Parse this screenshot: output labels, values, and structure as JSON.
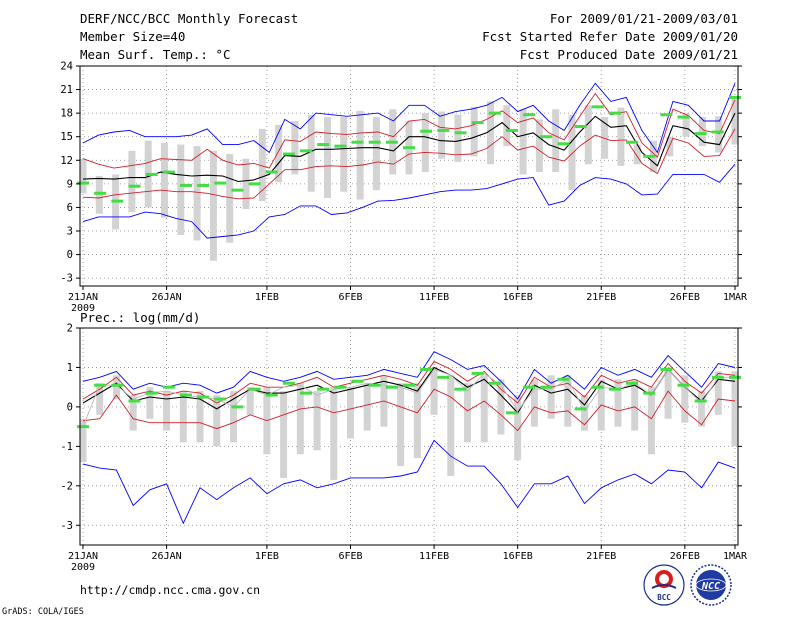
{
  "header": {
    "title": "DERF/NCC/BCC Monthly Forecast",
    "member_size": "Member Size=40",
    "variable": "Mean Surf. Temp.: °C",
    "period": "For 2009/01/21-2009/03/01",
    "started": "Fcst Started Refer Date 2009/01/20",
    "produced": "Fcst Produced Date 2009/01/21"
  },
  "footer": {
    "url": "http://cmdp.ncc.cma.gov.cn",
    "credit": "GrADS: COLA/IGES",
    "logo_left_text": "BCC",
    "logo_right_text": "NCC"
  },
  "colors": {
    "envelope": "#0000ff",
    "spread": "#d0202a",
    "mean": "#000000",
    "obs_bar": "#d3d3d3",
    "member_tick": "#44dd44",
    "grid": "#888888"
  },
  "chart_data": [
    {
      "id": "temperature",
      "type": "line",
      "title": "Mean Surf. Temp.: °C",
      "xlabel": "",
      "ylabel": "",
      "ylim": [
        -4,
        24
      ],
      "yticks": [
        24,
        21,
        18,
        15,
        12,
        9,
        6,
        3,
        0,
        -3
      ],
      "xlim": [
        1,
        40
      ],
      "xticks": [
        {
          "day": 1,
          "label": "21JAN",
          "sub": "2009"
        },
        {
          "day": 6,
          "label": "26JAN",
          "sub": ""
        },
        {
          "day": 12,
          "label": "1FEB",
          "sub": ""
        },
        {
          "day": 17,
          "label": "6FEB",
          "sub": ""
        },
        {
          "day": 22,
          "label": "11FEB",
          "sub": ""
        },
        {
          "day": 27,
          "label": "16FEB",
          "sub": ""
        },
        {
          "day": 32,
          "label": "21FEB",
          "sub": ""
        },
        {
          "day": 37,
          "label": "26FEB",
          "sub": ""
        },
        {
          "day": 40,
          "label": "1MAR",
          "sub": ""
        }
      ],
      "grid": true,
      "series": [
        {
          "name": "max",
          "color": "#0000ff",
          "values": [
            14.2,
            15.2,
            15.6,
            15.8,
            15.0,
            15.0,
            15.0,
            15.2,
            16.0,
            14.0,
            14.0,
            14.5,
            13.0,
            17.2,
            16.0,
            18.0,
            17.8,
            17.6,
            17.8,
            18.0,
            17.0,
            19.0,
            19.0,
            17.6,
            18.2,
            18.5,
            19.0,
            20.0,
            18.2,
            19.0,
            17.0,
            15.8,
            19.0,
            21.8,
            19.5,
            20.0,
            15.8,
            13.0,
            19.5,
            19.0,
            17.0,
            17.0,
            21.8
          ]
        },
        {
          "name": "upper",
          "color": "#d0202a",
          "values": [
            12.2,
            11.5,
            11.0,
            11.3,
            11.6,
            12.2,
            12.1,
            12.0,
            13.4,
            12.0,
            11.4,
            11.6,
            11.0,
            14.6,
            14.4,
            15.6,
            15.4,
            15.3,
            15.5,
            15.6,
            15.0,
            17.0,
            17.2,
            16.2,
            16.0,
            16.4,
            17.2,
            18.3,
            16.8,
            17.4,
            15.5,
            14.6,
            17.6,
            20.5,
            17.8,
            18.2,
            14.2,
            12.4,
            18.5,
            17.7,
            15.8,
            15.4,
            19.7
          ]
        },
        {
          "name": "mean",
          "color": "#000000",
          "values": [
            9.6,
            9.7,
            9.6,
            9.8,
            9.8,
            10.5,
            10.2,
            10.0,
            10.1,
            10.0,
            9.3,
            9.5,
            10.2,
            12.6,
            12.5,
            13.4,
            13.4,
            13.5,
            13.6,
            13.6,
            13.2,
            15.0,
            15.0,
            14.5,
            14.4,
            14.8,
            15.5,
            16.8,
            15.0,
            15.5,
            14.0,
            13.3,
            15.6,
            17.6,
            16.2,
            16.4,
            13.0,
            11.3,
            16.4,
            16.0,
            14.3,
            14.0,
            18.0
          ]
        },
        {
          "name": "lower",
          "color": "#d0202a",
          "values": [
            7.3,
            7.2,
            7.6,
            7.8,
            8.0,
            8.2,
            8.0,
            8.0,
            7.8,
            7.4,
            7.1,
            7.2,
            9.0,
            10.8,
            10.8,
            11.2,
            11.3,
            11.2,
            11.4,
            11.8,
            11.5,
            12.8,
            13.0,
            12.9,
            12.7,
            12.8,
            13.5,
            15.0,
            13.3,
            13.8,
            12.4,
            11.9,
            13.8,
            15.2,
            14.5,
            14.6,
            11.6,
            10.3,
            14.8,
            14.2,
            12.5,
            12.6,
            16.0
          ]
        },
        {
          "name": "min",
          "color": "#0000ff",
          "values": [
            4.2,
            4.8,
            4.8,
            4.8,
            5.4,
            5.2,
            4.6,
            4.2,
            2.1,
            2.3,
            2.5,
            3.0,
            4.8,
            5.1,
            6.2,
            6.2,
            5.1,
            5.3,
            6.0,
            6.8,
            6.9,
            7.2,
            7.6,
            8.0,
            8.2,
            8.2,
            8.4,
            9.0,
            9.6,
            9.8,
            6.3,
            6.8,
            8.8,
            9.8,
            9.6,
            9.0,
            7.6,
            7.7,
            10.2,
            10.2,
            10.2,
            9.2,
            11.5
          ]
        }
      ],
      "spread_bars": [
        [
          7.8,
          12.2
        ],
        [
          5.2,
          10.0
        ],
        [
          3.2,
          10.2
        ],
        [
          5.4,
          13.2
        ],
        [
          6.0,
          14.5
        ],
        [
          4.7,
          14.2
        ],
        [
          2.5,
          14.0
        ],
        [
          1.8,
          13.8
        ],
        [
          -0.8,
          13.2
        ],
        [
          1.5,
          12.8
        ],
        [
          5.8,
          12.2
        ],
        [
          6.8,
          16.0
        ],
        [
          9.2,
          16.5
        ],
        [
          10.2,
          17.0
        ],
        [
          8.0,
          17.8
        ],
        [
          7.2,
          17.5
        ],
        [
          8.0,
          17.5
        ],
        [
          7.0,
          18.3
        ],
        [
          8.2,
          17.5
        ],
        [
          10.2,
          18.5
        ],
        [
          10.2,
          17.0
        ],
        [
          10.5,
          18.0
        ],
        [
          12.2,
          18.2
        ],
        [
          11.8,
          17.8
        ],
        [
          12.5,
          18.8
        ],
        [
          11.5,
          19.5
        ],
        [
          13.8,
          19.0
        ],
        [
          10.2,
          18.5
        ],
        [
          10.5,
          17.2
        ],
        [
          10.5,
          18.5
        ],
        [
          8.2,
          17.8
        ],
        [
          11.5,
          19.0
        ],
        [
          12.2,
          17.5
        ],
        [
          11.3,
          18.7
        ],
        [
          11.5,
          14.0
        ],
        [
          10.5,
          14.5
        ],
        [
          12.5,
          15.0
        ],
        [
          15.0,
          18.0
        ],
        [
          13.8,
          17.5
        ],
        [
          13.0,
          17.6
        ],
        [
          14.0,
          19.8
        ]
      ],
      "member_marks": [
        9.1,
        7.8,
        6.8,
        8.7,
        10.2,
        10.5,
        8.8,
        8.8,
        9.1,
        8.2,
        9.0,
        10.5,
        12.8,
        13.2,
        14.0,
        13.8,
        14.3,
        14.3,
        14.3,
        13.6,
        15.7,
        15.8,
        15.5,
        16.8,
        18.0,
        15.8,
        17.8,
        15.0,
        14.1,
        16.3,
        18.8,
        18.0,
        14.3,
        12.5,
        17.8,
        17.5,
        15.4,
        15.6,
        20.0
      ]
    },
    {
      "id": "precipitation",
      "type": "line",
      "title": "Prec.: log(mm/d)",
      "xlabel": "",
      "ylabel": "",
      "ylim": [
        -3.5,
        2
      ],
      "yticks": [
        2,
        1,
        0,
        -1,
        -2,
        -3
      ],
      "xlim": [
        1,
        40
      ],
      "xticks": [
        {
          "day": 1,
          "label": "21JAN",
          "sub": "2009"
        },
        {
          "day": 6,
          "label": "26JAN",
          "sub": ""
        },
        {
          "day": 12,
          "label": "1FEB",
          "sub": ""
        },
        {
          "day": 17,
          "label": "6FEB",
          "sub": ""
        },
        {
          "day": 22,
          "label": "11FEB",
          "sub": ""
        },
        {
          "day": 27,
          "label": "16FEB",
          "sub": ""
        },
        {
          "day": 32,
          "label": "21FEB",
          "sub": ""
        },
        {
          "day": 37,
          "label": "26FEB",
          "sub": ""
        },
        {
          "day": 40,
          "label": "1MAR",
          "sub": ""
        }
      ],
      "grid": true,
      "series": [
        {
          "name": "max",
          "color": "#0000ff",
          "values": [
            0.65,
            0.75,
            0.9,
            0.45,
            0.6,
            0.5,
            0.6,
            0.55,
            0.35,
            0.5,
            0.9,
            0.75,
            0.65,
            0.75,
            0.9,
            0.7,
            0.75,
            0.8,
            0.95,
            0.85,
            0.75,
            1.4,
            1.2,
            0.95,
            1.05,
            0.65,
            0.2,
            0.95,
            0.6,
            0.8,
            0.45,
            1.0,
            0.8,
            0.95,
            0.75,
            1.3,
            0.9,
            0.5,
            1.1,
            1.0
          ]
        },
        {
          "name": "upper",
          "color": "#d0202a",
          "values": [
            0.2,
            0.45,
            0.75,
            0.3,
            0.4,
            0.3,
            0.4,
            0.35,
            0.1,
            0.3,
            0.6,
            0.5,
            0.5,
            0.6,
            0.75,
            0.5,
            0.6,
            0.7,
            0.8,
            0.7,
            0.55,
            1.15,
            0.95,
            0.65,
            0.9,
            0.45,
            0.1,
            0.75,
            0.5,
            0.6,
            0.25,
            0.8,
            0.6,
            0.7,
            0.5,
            1.1,
            0.65,
            0.35,
            0.85,
            0.8
          ]
        },
        {
          "name": "mean",
          "color": "#000000",
          "values": [
            0.1,
            0.35,
            0.6,
            0.15,
            0.25,
            0.2,
            0.25,
            0.2,
            -0.05,
            0.2,
            0.45,
            0.35,
            0.35,
            0.45,
            0.55,
            0.35,
            0.45,
            0.55,
            0.65,
            0.55,
            0.4,
            1.0,
            0.8,
            0.5,
            0.7,
            0.3,
            -0.15,
            0.55,
            0.35,
            0.45,
            0.05,
            0.65,
            0.45,
            0.55,
            0.3,
            0.95,
            0.5,
            0.15,
            0.7,
            0.65
          ]
        },
        {
          "name": "lower",
          "color": "#d0202a",
          "values": [
            -0.35,
            -0.3,
            0.3,
            -0.3,
            -0.4,
            -0.4,
            -0.4,
            -0.4,
            -0.55,
            -0.4,
            -0.2,
            -0.35,
            -0.2,
            -0.05,
            0.0,
            -0.15,
            -0.05,
            0.05,
            0.15,
            0.0,
            -0.15,
            0.45,
            0.25,
            -0.1,
            0.15,
            -0.2,
            -0.6,
            0.0,
            -0.15,
            -0.1,
            -0.45,
            0.05,
            -0.1,
            0.0,
            -0.3,
            0.4,
            -0.1,
            -0.45,
            0.2,
            0.15
          ]
        },
        {
          "name": "min",
          "color": "#0000ff",
          "values": [
            -1.45,
            -1.55,
            -1.6,
            -2.5,
            -2.1,
            -1.95,
            -2.95,
            -2.05,
            -2.35,
            -2.05,
            -1.8,
            -2.2,
            -1.95,
            -1.85,
            -2.05,
            -1.95,
            -1.8,
            -1.8,
            -1.8,
            -1.75,
            -1.65,
            -0.85,
            -1.25,
            -1.5,
            -1.5,
            -1.95,
            -2.55,
            -1.95,
            -1.95,
            -1.75,
            -2.45,
            -2.05,
            -1.85,
            -1.7,
            -1.95,
            -1.6,
            -1.65,
            -2.05,
            -1.4,
            -1.55
          ]
        },
        {
          "name": "obs",
          "color": "#d3d3d3",
          "values": [
            -0.5,
            0.55,
            0.55,
            0.2,
            0.35,
            0.4,
            0.3,
            0.25,
            0.2,
            0.0,
            0.45,
            0.3,
            0.5,
            0.55,
            0.3,
            0.45,
            0.5,
            0.6,
            0.55,
            0.5,
            0.35,
            0.95,
            0.8,
            0.4,
            0.85,
            0.55,
            -0.1,
            0.45,
            0.45,
            0.7,
            -0.1,
            0.5,
            0.45,
            0.6,
            0.3,
            0.95,
            0.5,
            0.1,
            0.75,
            0.75
          ]
        }
      ],
      "spread_bars": [
        [
          -1.4,
          -0.3
        ],
        [
          -0.2,
          0.6
        ],
        [
          0.2,
          0.8
        ],
        [
          -0.6,
          0.3
        ],
        [
          -0.3,
          0.5
        ],
        [
          -0.6,
          0.4
        ],
        [
          -0.9,
          0.4
        ],
        [
          -0.9,
          0.4
        ],
        [
          -1.0,
          0.3
        ],
        [
          -0.9,
          0.4
        ],
        [
          -0.2,
          0.5
        ],
        [
          -1.2,
          0.5
        ],
        [
          -1.8,
          0.4
        ],
        [
          -1.2,
          0.6
        ],
        [
          -1.1,
          0.4
        ],
        [
          -1.85,
          0.5
        ],
        [
          -0.8,
          0.5
        ],
        [
          -0.6,
          0.6
        ],
        [
          -0.5,
          0.8
        ],
        [
          -1.5,
          0.6
        ],
        [
          -1.3,
          0.6
        ],
        [
          -0.2,
          1.0
        ],
        [
          -1.75,
          0.8
        ],
        [
          -0.9,
          0.6
        ],
        [
          -0.9,
          0.8
        ],
        [
          -0.7,
          0.7
        ],
        [
          -1.35,
          0.3
        ],
        [
          -0.5,
          0.7
        ],
        [
          -0.3,
          0.8
        ],
        [
          -0.5,
          0.8
        ],
        [
          -0.6,
          0.3
        ],
        [
          -0.6,
          0.7
        ],
        [
          -0.5,
          0.7
        ],
        [
          -0.6,
          0.7
        ],
        [
          -1.2,
          0.5
        ],
        [
          -0.3,
          1.0
        ],
        [
          -0.4,
          0.8
        ],
        [
          -0.5,
          0.4
        ],
        [
          -0.2,
          0.9
        ],
        [
          -1.0,
          0.9
        ]
      ],
      "member_marks": [
        -0.5,
        0.55,
        0.55,
        0.15,
        0.35,
        0.5,
        0.3,
        0.25,
        0.2,
        0.0,
        0.45,
        0.3,
        0.6,
        0.35,
        0.45,
        0.5,
        0.65,
        0.55,
        0.5,
        0.55,
        0.95,
        0.75,
        0.45,
        0.85,
        0.6,
        -0.15,
        0.5,
        0.5,
        0.7,
        -0.05,
        0.5,
        0.45,
        0.6,
        0.35,
        0.95,
        0.55,
        0.15,
        0.75,
        0.75
      ]
    }
  ]
}
